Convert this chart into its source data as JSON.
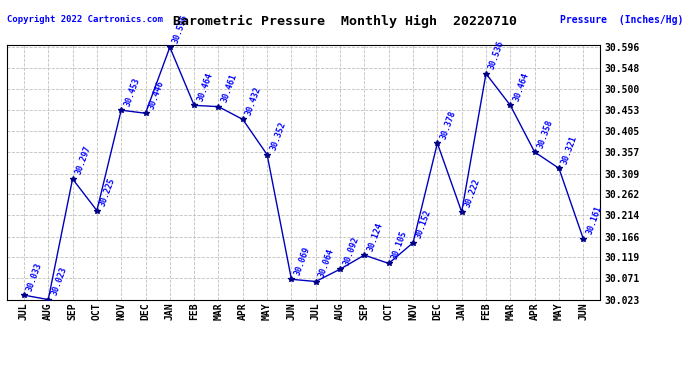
{
  "title": "Barometric Pressure  Monthly High  20220710",
  "copyright": "Copyright 2022 Cartronics.com",
  "ylabel": "Pressure  (Inches/Hg)",
  "months": [
    "JUL",
    "AUG",
    "SEP",
    "OCT",
    "NOV",
    "DEC",
    "JAN",
    "FEB",
    "MAR",
    "APR",
    "MAY",
    "JUN",
    "JUL",
    "AUG",
    "SEP",
    "OCT",
    "NOV",
    "DEC",
    "JAN",
    "FEB",
    "MAR",
    "APR",
    "MAY",
    "JUN"
  ],
  "values": [
    30.033,
    30.023,
    30.297,
    30.225,
    30.453,
    30.446,
    30.596,
    30.464,
    30.461,
    30.432,
    30.352,
    30.069,
    30.064,
    30.092,
    30.124,
    30.105,
    30.152,
    30.378,
    30.222,
    30.536,
    30.464,
    30.358,
    30.321,
    30.161
  ],
  "line_color": "#0000bb",
  "marker_color": "#000088",
  "label_color": "#0000ff",
  "grid_color": "#c0c0c0",
  "bg_color": "#ffffff",
  "title_color": "#000000",
  "ylabel_color": "#0000ff",
  "copyright_color": "#0000ff",
  "ylim_min": 30.023,
  "ylim_max": 30.596,
  "yticks": [
    30.023,
    30.071,
    30.119,
    30.166,
    30.214,
    30.262,
    30.309,
    30.357,
    30.405,
    30.453,
    30.5,
    30.548,
    30.596
  ]
}
